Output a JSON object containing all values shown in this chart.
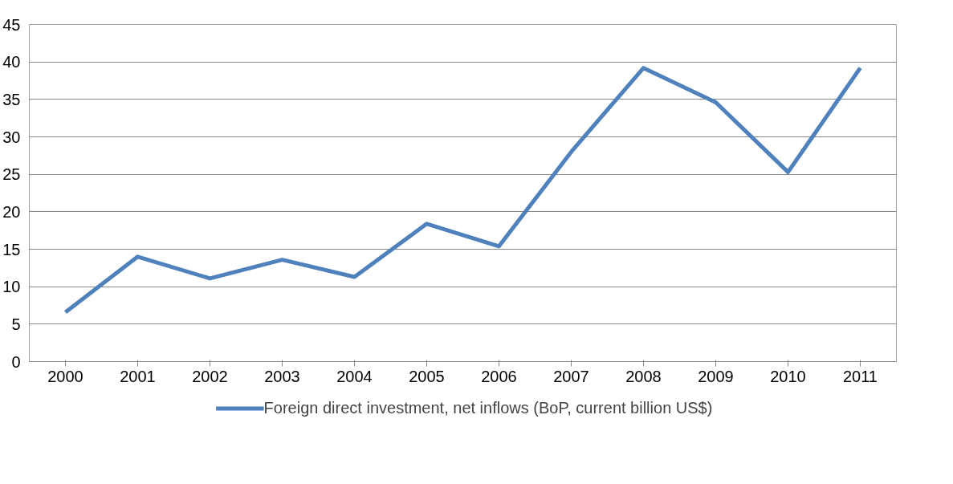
{
  "chart_data": {
    "type": "line",
    "categories": [
      "2000",
      "2001",
      "2002",
      "2003",
      "2004",
      "2005",
      "2006",
      "2007",
      "2008",
      "2009",
      "2010",
      "2011"
    ],
    "series": [
      {
        "name": "Foreign direct investment, net inflows (BoP, current billion US$)",
        "color": "#4f81bd",
        "values": [
          6.6,
          14.0,
          11.1,
          13.6,
          11.3,
          18.4,
          15.4,
          28.0,
          39.2,
          34.6,
          25.3,
          39.2
        ]
      }
    ],
    "ylim": [
      0,
      45
    ],
    "yticks": [
      0,
      5,
      10,
      15,
      20,
      25,
      30,
      35,
      40,
      45
    ],
    "grid": "y",
    "legend": "bottom",
    "marker": "none",
    "line_style": "solid"
  }
}
